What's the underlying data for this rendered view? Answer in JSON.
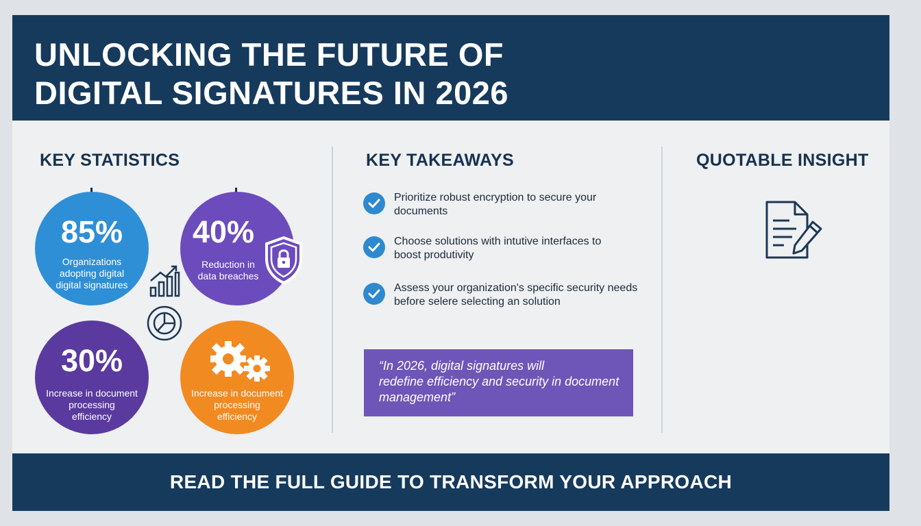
{
  "header": {
    "title_line1": "UNLOCKING THE FUTURE OF",
    "title_line2": "DIGITAL SIGNATURES IN 2026"
  },
  "statistics": {
    "title": "KEY STATISTICS",
    "items": [
      {
        "value": "85%",
        "label_lines": [
          "Organizations",
          "adopting digital",
          "digital signatures"
        ],
        "color": "#2f8fd6"
      },
      {
        "value": "40%",
        "label_lines": [
          "Reduction in",
          "data breaches"
        ],
        "color": "#6c4bbd"
      },
      {
        "value": "30%",
        "label_lines": [
          "Increase in document",
          "processing",
          "efficiency"
        ],
        "color": "#5a3a9e"
      },
      {
        "value": "",
        "label_lines": [
          "Increase in document",
          "processing",
          "efficiency"
        ],
        "color": "#f28a22"
      }
    ],
    "icons": [
      "bar-chart-icon",
      "pie-chart-icon",
      "shield-lock-icon",
      "gears-icon"
    ]
  },
  "takeaways": {
    "title": "KEY TAKEAWAYS",
    "items": [
      {
        "lines": [
          "Prioritize robust encryption to secure your",
          "documents"
        ]
      },
      {
        "lines": [
          "Choose solutions with intutive interfaces to",
          "boost produtivity"
        ]
      },
      {
        "lines": [
          "Assess your organization's specific security needs",
          "before selere selecting an solution"
        ]
      }
    ],
    "quote_lines": [
      "“In 2026, digital signatures will",
      "redefine efficiency and security in document",
      "management”"
    ]
  },
  "insight": {
    "title": "QUOTABLE INSIGHT",
    "icon": "document-pen-icon"
  },
  "footer": {
    "cta": "READ THE FULL GUIDE TO TRANSFORM YOUR APPROACH"
  },
  "colors": {
    "navy": "#163a5c",
    "blue": "#2f8fd6",
    "purple": "#6c4bbd",
    "orange": "#f28a22",
    "quote_purple": "#6e55b8"
  }
}
